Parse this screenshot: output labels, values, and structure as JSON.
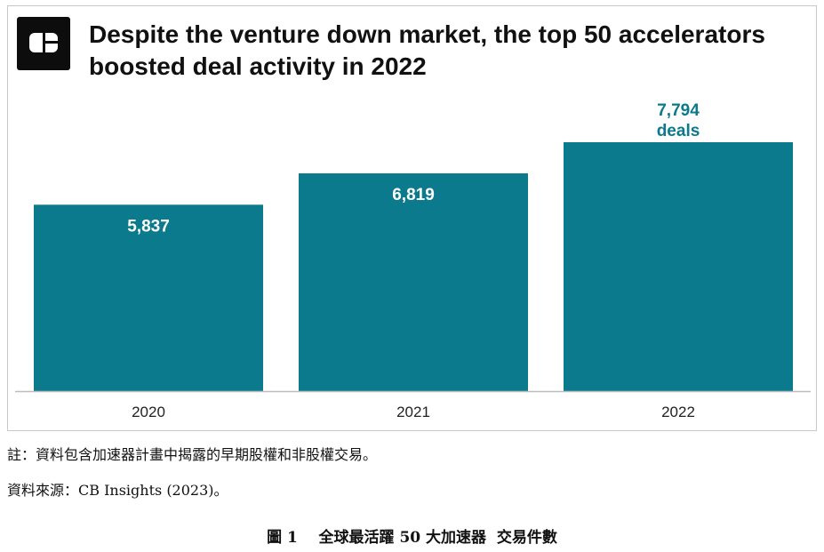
{
  "chart_data": {
    "type": "bar",
    "title": "Despite the venture down market, the top 50 accelerators boosted deal activity in 2022",
    "categories": [
      "2020",
      "2021",
      "2022"
    ],
    "values": [
      5837,
      6819,
      7794
    ],
    "data_labels": [
      "5,837",
      "6,819",
      "7,794"
    ],
    "highlight_unit": "deals",
    "bar_color": "#0b7a8c",
    "ylim": [
      0,
      8000
    ],
    "grid": false,
    "xlabel": "",
    "ylabel": ""
  },
  "logo": {
    "icon": "cb-insights-logo-icon"
  },
  "notes": {
    "note_text": "註：資料包含加速器計畫中揭露的早期股權和非股權交易。",
    "source_text": "資料來源：CB Insights (2023)。"
  },
  "caption": {
    "label": "圖 1",
    "text": "全球最活躍 50 大加速器  交易件數"
  }
}
